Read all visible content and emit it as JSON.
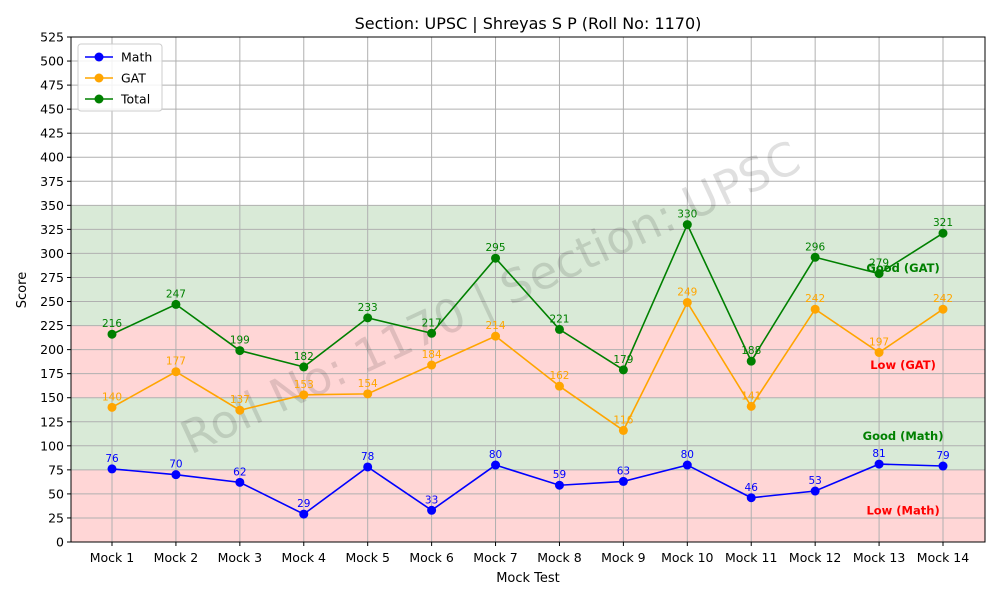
{
  "chart_data": {
    "type": "line",
    "title": "Section: UPSC | Shreyas S P (Roll No: 1170)",
    "xlabel": "Mock Test",
    "ylabel": "Score",
    "ylim": [
      0,
      525
    ],
    "yticks": [
      0,
      25,
      50,
      75,
      100,
      125,
      150,
      175,
      200,
      225,
      250,
      275,
      300,
      325,
      350,
      375,
      400,
      425,
      450,
      475,
      500,
      525
    ],
    "grid": true,
    "legend_position": "top-left",
    "categories": [
      "Mock 1",
      "Mock 2",
      "Mock 3",
      "Mock 4",
      "Mock 5",
      "Mock 6",
      "Mock 7",
      "Mock 8",
      "Mock 9",
      "Mock 10",
      "Mock 11",
      "Mock 12",
      "Mock 13",
      "Mock 14"
    ],
    "series": [
      {
        "name": "Math",
        "color": "#0000ff",
        "values": [
          76,
          70,
          62,
          29,
          78,
          33,
          80,
          59,
          63,
          80,
          46,
          53,
          81,
          79
        ]
      },
      {
        "name": "GAT",
        "color": "#ffa500",
        "values": [
          140,
          177,
          137,
          153,
          154,
          184,
          214,
          162,
          116,
          249,
          141,
          242,
          197,
          242
        ]
      },
      {
        "name": "Total",
        "color": "#008000",
        "values": [
          216,
          247,
          199,
          182,
          233,
          217,
          295,
          221,
          179,
          330,
          188,
          296,
          279,
          321
        ]
      }
    ],
    "bands": [
      {
        "from": 0,
        "to": 75,
        "color": "#ffd6d6"
      },
      {
        "from": 75,
        "to": 150,
        "color": "#d9ead7"
      },
      {
        "from": 150,
        "to": 225,
        "color": "#ffd6d6"
      },
      {
        "from": 225,
        "to": 350,
        "color": "#d9ead7"
      }
    ],
    "annotations": [
      {
        "text": "Good (GAT)",
        "x": 12,
        "y": 285,
        "color": "#008000"
      },
      {
        "text": "Low (GAT)",
        "x": 12,
        "y": 184,
        "color": "#ff0000"
      },
      {
        "text": "Good (Math)",
        "x": 12,
        "y": 110,
        "color": "#008000"
      },
      {
        "text": "Low (Math)",
        "x": 12,
        "y": 33,
        "color": "#ff0000"
      }
    ],
    "watermark": "Roll No: 1170 | Section: UPSC"
  }
}
